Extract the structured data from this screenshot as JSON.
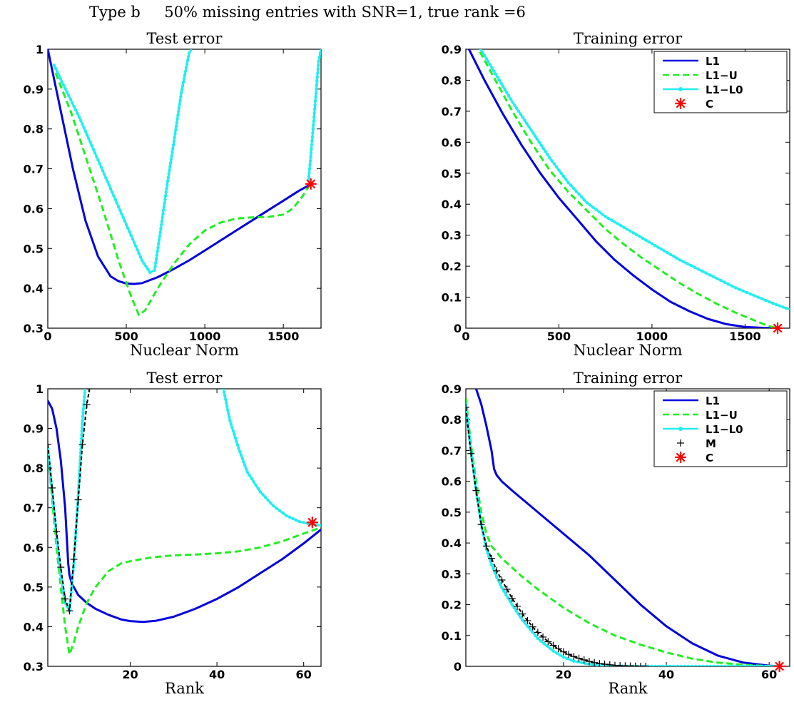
{
  "figure": {
    "suptitle": "Type b     50% missing entries with SNR=1, true rank =6"
  },
  "colors": {
    "L1": "#0000dd",
    "L1-U": "#22ee22",
    "L1-L0": "#22eeee",
    "M": "#000000",
    "C": "#ff0000"
  },
  "chart_data": [
    {
      "type": "line",
      "title": "Test error",
      "xlabel": "Nuclear Norm",
      "ylabel": "",
      "xlim": [
        0,
        1740
      ],
      "ylim": [
        0.3,
        1.0
      ],
      "xticks": [
        0,
        500,
        1000,
        1500
      ],
      "xtick_labels": [
        "0",
        "500",
        "1000",
        "1500"
      ],
      "yticks": [
        0.3,
        0.4,
        0.5,
        0.6,
        0.7,
        0.8,
        0.9,
        1.0
      ],
      "ytick_labels": [
        "0.3",
        "0.4",
        "0.5",
        "0.6",
        "0.7",
        "0.8",
        "0.9",
        "1"
      ],
      "legend": null,
      "series": [
        {
          "key": "L1",
          "style": "solid",
          "x": [
            0,
            80,
            160,
            240,
            320,
            400,
            450,
            500,
            550,
            600,
            700,
            800,
            900,
            1000,
            1100,
            1200,
            1300,
            1400,
            1500,
            1600,
            1670
          ],
          "y": [
            1.0,
            0.85,
            0.7,
            0.57,
            0.48,
            0.43,
            0.418,
            0.412,
            0.411,
            0.413,
            0.428,
            0.448,
            0.47,
            0.495,
            0.52,
            0.545,
            0.57,
            0.595,
            0.62,
            0.645,
            0.66
          ]
        },
        {
          "key": "L1-U",
          "style": "dashed",
          "x": [
            50,
            150,
            250,
            350,
            450,
            530,
            580,
            620,
            700,
            800,
            900,
            1000,
            1100,
            1200,
            1300,
            1400,
            1500,
            1560,
            1620,
            1670
          ],
          "y": [
            0.94,
            0.84,
            0.72,
            0.6,
            0.47,
            0.38,
            0.333,
            0.345,
            0.4,
            0.46,
            0.51,
            0.545,
            0.565,
            0.575,
            0.578,
            0.579,
            0.585,
            0.6,
            0.63,
            0.66
          ]
        },
        {
          "key": "L1-L0",
          "style": "dotted",
          "x": [
            40,
            100,
            200,
            300,
            400,
            500,
            600,
            650,
            680,
            720,
            760,
            800,
            850,
            900,
            915
          ],
          "y": [
            0.96,
            0.91,
            0.83,
            0.74,
            0.65,
            0.56,
            0.47,
            0.44,
            0.445,
            0.55,
            0.66,
            0.76,
            0.89,
            0.99,
            1.0
          ]
        },
        {
          "key": "L1-L0",
          "style": "dotted",
          "x": [
            1660,
            1672,
            1685,
            1700,
            1712,
            1725,
            1740
          ],
          "y": [
            0.67,
            0.72,
            0.78,
            0.85,
            0.91,
            0.97,
            1.0
          ]
        }
      ],
      "markers": [
        {
          "key": "C",
          "x": [
            1675
          ],
          "y": [
            0.662
          ]
        }
      ]
    },
    {
      "type": "line",
      "title": "Training error",
      "xlabel": "Nuclear Norm",
      "ylabel": "",
      "xlim": [
        0,
        1740
      ],
      "ylim": [
        0,
        0.9
      ],
      "xticks": [
        0,
        500,
        1000,
        1500
      ],
      "xtick_labels": [
        "0",
        "500",
        "1000",
        "1500"
      ],
      "yticks": [
        0,
        0.1,
        0.2,
        0.3,
        0.4,
        0.5,
        0.6,
        0.7,
        0.8,
        0.9
      ],
      "ytick_labels": [
        "0",
        "0.1",
        "0.2",
        "0.3",
        "0.4",
        "0.5",
        "0.6",
        "0.7",
        "0.8",
        "0.9"
      ],
      "legend": {
        "position": "top-right",
        "entries": [
          "L1",
          "L1−U",
          "L1−L0",
          "C"
        ],
        "keys": [
          "L1",
          "L1-U",
          "L1-L0",
          "C"
        ]
      },
      "series": [
        {
          "key": "L1",
          "style": "solid",
          "x": [
            0,
            100,
            200,
            300,
            400,
            500,
            600,
            700,
            800,
            900,
            1000,
            1100,
            1200,
            1300,
            1400,
            1500,
            1600,
            1670
          ],
          "y": [
            0.92,
            0.8,
            0.69,
            0.59,
            0.5,
            0.42,
            0.35,
            0.28,
            0.22,
            0.17,
            0.125,
            0.085,
            0.055,
            0.03,
            0.013,
            0.004,
            0.001,
            0.0
          ]
        },
        {
          "key": "L1-U",
          "style": "dashed",
          "x": [
            50,
            150,
            250,
            350,
            450,
            550,
            650,
            750,
            850,
            950,
            1050,
            1150,
            1250,
            1350,
            1450,
            1550,
            1620,
            1670
          ],
          "y": [
            0.92,
            0.81,
            0.7,
            0.6,
            0.51,
            0.44,
            0.38,
            0.32,
            0.27,
            0.225,
            0.185,
            0.145,
            0.11,
            0.078,
            0.05,
            0.025,
            0.008,
            0.0
          ]
        },
        {
          "key": "L1-L0",
          "style": "dotted",
          "x": [
            80,
            150,
            250,
            350,
            450,
            550,
            650,
            750,
            850,
            950,
            1050,
            1150,
            1250,
            1350,
            1450,
            1550,
            1650,
            1740
          ],
          "y": [
            0.9,
            0.83,
            0.73,
            0.64,
            0.55,
            0.47,
            0.405,
            0.36,
            0.325,
            0.29,
            0.255,
            0.22,
            0.19,
            0.16,
            0.13,
            0.105,
            0.08,
            0.06
          ]
        }
      ],
      "markers": [
        {
          "key": "C",
          "x": [
            1675
          ],
          "y": [
            0.0
          ]
        }
      ]
    },
    {
      "type": "line",
      "title": "Test error",
      "xlabel": "Rank",
      "ylabel": "",
      "xlim": [
        1,
        64
      ],
      "ylim": [
        0.3,
        1.0
      ],
      "xticks": [
        20,
        40,
        60
      ],
      "xtick_labels": [
        "20",
        "40",
        "60"
      ],
      "yticks": [
        0.3,
        0.4,
        0.5,
        0.6,
        0.7,
        0.8,
        0.9,
        1.0
      ],
      "ytick_labels": [
        "0.3",
        "0.4",
        "0.5",
        "0.6",
        "0.7",
        "0.8",
        "0.9",
        "1"
      ],
      "legend": null,
      "series": [
        {
          "key": "L1",
          "style": "solid",
          "x": [
            1,
            2,
            3,
            4,
            5,
            5.7,
            6,
            6.5,
            7,
            8,
            10,
            12,
            15,
            18,
            20,
            23,
            26,
            30,
            35,
            40,
            45,
            50,
            55,
            60,
            64
          ],
          "y": [
            0.97,
            0.95,
            0.9,
            0.82,
            0.7,
            0.56,
            0.53,
            0.51,
            0.5,
            0.48,
            0.46,
            0.445,
            0.43,
            0.418,
            0.414,
            0.412,
            0.415,
            0.425,
            0.445,
            0.47,
            0.5,
            0.535,
            0.57,
            0.61,
            0.645
          ]
        },
        {
          "key": "L1-U",
          "style": "dashed",
          "x": [
            1,
            2,
            3,
            4,
            5,
            6,
            7,
            8,
            10,
            12,
            15,
            18,
            20,
            25,
            30,
            35,
            40,
            45,
            50,
            55,
            60,
            64
          ],
          "y": [
            0.85,
            0.72,
            0.6,
            0.5,
            0.4,
            0.33,
            0.36,
            0.4,
            0.46,
            0.5,
            0.54,
            0.56,
            0.565,
            0.575,
            0.58,
            0.582,
            0.585,
            0.59,
            0.6,
            0.615,
            0.635,
            0.65
          ]
        },
        {
          "key": "L1-L0",
          "style": "dotted",
          "x": [
            1,
            2,
            3,
            4,
            5,
            6,
            7,
            8,
            9,
            9.6
          ],
          "y": [
            0.85,
            0.74,
            0.63,
            0.53,
            0.46,
            0.44,
            0.56,
            0.73,
            0.92,
            1.0
          ]
        },
        {
          "key": "L1-L0",
          "style": "dotted",
          "x": [
            41.5,
            43,
            45,
            47,
            50,
            53,
            56,
            59,
            62,
            64
          ],
          "y": [
            1.0,
            0.92,
            0.85,
            0.79,
            0.74,
            0.705,
            0.68,
            0.665,
            0.658,
            0.655
          ]
        },
        {
          "key": "M",
          "style": "dashed",
          "x": [
            1,
            2,
            3,
            4,
            5,
            6,
            7,
            8,
            9,
            10,
            10.6
          ],
          "y": [
            0.86,
            0.75,
            0.64,
            0.55,
            0.47,
            0.44,
            0.57,
            0.72,
            0.86,
            0.96,
            1.0
          ]
        }
      ],
      "markers": [
        {
          "key": "C",
          "x": [
            62
          ],
          "y": [
            0.663
          ]
        }
      ]
    },
    {
      "type": "line",
      "title": "Training error",
      "xlabel": "Rank",
      "ylabel": "",
      "xlim": [
        1,
        64
      ],
      "ylim": [
        0,
        0.9
      ],
      "xticks": [
        20,
        40,
        60
      ],
      "xtick_labels": [
        "20",
        "40",
        "60"
      ],
      "yticks": [
        0,
        0.1,
        0.2,
        0.3,
        0.4,
        0.5,
        0.6,
        0.7,
        0.8,
        0.9
      ],
      "ytick_labels": [
        "0",
        "0.1",
        "0.2",
        "0.3",
        "0.4",
        "0.5",
        "0.6",
        "0.7",
        "0.8",
        "0.9"
      ],
      "legend": {
        "position": "top-right",
        "entries": [
          "L1",
          "L1−U",
          "L1−L0",
          "M",
          "C"
        ],
        "keys": [
          "L1",
          "L1-U",
          "L1-L0",
          "M",
          "C"
        ]
      },
      "series": [
        {
          "key": "L1",
          "style": "solid",
          "x": [
            3,
            4,
            5,
            6,
            6.5,
            7,
            8,
            10,
            15,
            20,
            25,
            30,
            35,
            40,
            45,
            50,
            55,
            60,
            62
          ],
          "y": [
            0.9,
            0.85,
            0.78,
            0.7,
            0.64,
            0.62,
            0.6,
            0.57,
            0.5,
            0.43,
            0.36,
            0.28,
            0.2,
            0.13,
            0.075,
            0.035,
            0.012,
            0.002,
            0.0
          ]
        },
        {
          "key": "L1-U",
          "style": "dashed",
          "x": [
            1,
            2,
            3,
            4,
            5,
            6,
            7,
            8,
            10,
            12,
            15,
            20,
            25,
            30,
            35,
            40,
            45,
            50,
            55,
            60,
            62
          ],
          "y": [
            0.87,
            0.72,
            0.6,
            0.5,
            0.43,
            0.39,
            0.37,
            0.35,
            0.32,
            0.29,
            0.25,
            0.19,
            0.14,
            0.1,
            0.07,
            0.045,
            0.025,
            0.012,
            0.005,
            0.001,
            0.0
          ]
        },
        {
          "key": "L1-L0",
          "style": "dotted",
          "x": [
            1,
            2,
            3,
            4,
            5,
            6,
            7,
            8,
            10,
            12,
            15,
            18,
            20,
            22,
            25,
            28,
            30,
            35,
            40,
            50,
            60,
            62
          ],
          "y": [
            0.85,
            0.7,
            0.57,
            0.46,
            0.38,
            0.33,
            0.29,
            0.255,
            0.2,
            0.15,
            0.09,
            0.05,
            0.03,
            0.017,
            0.007,
            0.002,
            0.001,
            0.0,
            0.0,
            0.0,
            0.0,
            0.0
          ]
        },
        {
          "key": "M",
          "style": "dashed",
          "x": [
            1,
            2,
            3,
            4,
            5,
            6,
            7,
            8,
            9,
            10,
            11,
            12,
            13,
            14,
            15,
            16,
            17,
            18,
            19,
            20,
            21,
            22,
            23,
            24,
            25,
            26,
            27,
            28,
            29,
            30,
            31,
            32,
            33,
            34,
            35,
            36
          ],
          "y": [
            0.84,
            0.69,
            0.57,
            0.46,
            0.39,
            0.35,
            0.31,
            0.28,
            0.25,
            0.22,
            0.195,
            0.17,
            0.148,
            0.128,
            0.11,
            0.095,
            0.08,
            0.068,
            0.057,
            0.047,
            0.039,
            0.032,
            0.026,
            0.021,
            0.016,
            0.012,
            0.009,
            0.007,
            0.005,
            0.003,
            0.002,
            0.0015,
            0.001,
            0.0005,
            0.0002,
            0.0
          ]
        }
      ],
      "markers": [
        {
          "key": "C",
          "x": [
            62
          ],
          "y": [
            0.0
          ]
        }
      ]
    }
  ]
}
